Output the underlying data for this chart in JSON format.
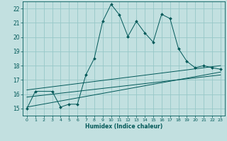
{
  "xlabel": "Humidex (Indice chaleur)",
  "bg_color": "#c2e0e0",
  "grid_color": "#96c8c8",
  "line_color": "#005858",
  "xlim": [
    -0.5,
    23.5
  ],
  "ylim": [
    14.5,
    22.5
  ],
  "xticks": [
    0,
    1,
    2,
    3,
    4,
    5,
    6,
    7,
    8,
    9,
    10,
    11,
    12,
    13,
    14,
    15,
    16,
    17,
    18,
    19,
    20,
    21,
    22,
    23
  ],
  "yticks": [
    15,
    16,
    17,
    18,
    19,
    20,
    21,
    22
  ],
  "main_x": [
    0,
    1,
    3,
    4,
    5,
    6,
    7,
    8,
    9,
    10,
    11,
    12,
    13,
    14,
    15,
    16,
    17,
    18,
    19,
    20,
    21,
    22,
    23
  ],
  "main_y": [
    15.0,
    16.2,
    16.2,
    15.1,
    15.3,
    15.3,
    17.35,
    18.5,
    21.1,
    22.3,
    21.55,
    20.05,
    21.1,
    20.3,
    19.65,
    21.6,
    21.3,
    19.2,
    18.3,
    17.85,
    18.0,
    17.85,
    17.75
  ],
  "line1_x": [
    0,
    23
  ],
  "line1_y": [
    15.1,
    17.55
  ],
  "line2_x": [
    0,
    23
  ],
  "line2_y": [
    15.8,
    17.35
  ],
  "line3_x": [
    0,
    23
  ],
  "line3_y": [
    16.3,
    18.0
  ]
}
